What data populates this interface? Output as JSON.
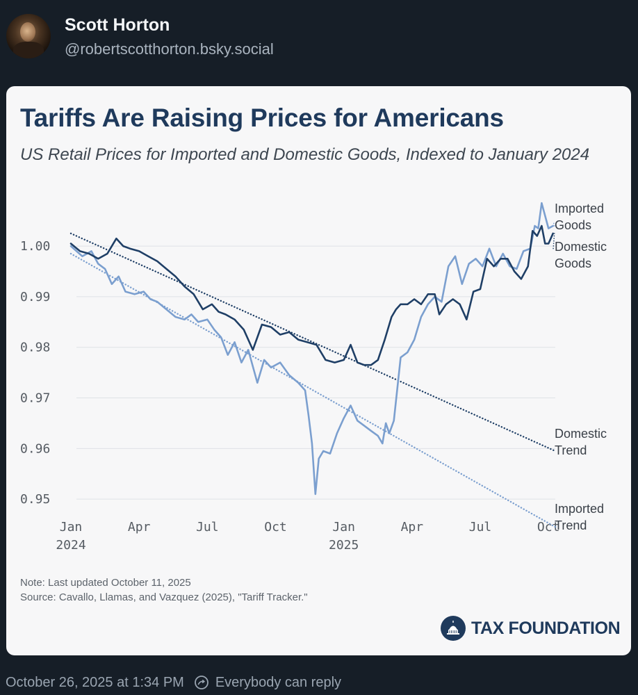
{
  "post": {
    "author_name": "Scott Horton",
    "author_handle": "@robertscotthorton.bsky.social",
    "timestamp": "October 26, 2025 at 1:34 PM",
    "reply_setting": "Everybody can reply"
  },
  "chart_card": {
    "brand": "TAX FOUNDATION",
    "note": "Note: Last updated October 11, 2025",
    "source": "Source: Cavallo, Llamas, and Vazquez (2025), \"Tariff Tracker.\""
  },
  "colors": {
    "imported": "#7b9fcf",
    "domestic": "#1f3f66",
    "title": "#1f3a5c",
    "background": "#161e27"
  },
  "chart_data": {
    "type": "line",
    "title": "Tariffs Are Raising Prices for Americans",
    "subtitle": "US Retail Prices for Imported and Domestic Goods, Indexed to January 2024",
    "xlabel": "",
    "ylabel": "",
    "ylim": [
      0.947,
      1.011
    ],
    "xlim": [
      0,
      21.3
    ],
    "grid": true,
    "y_ticks": [
      {
        "value": 1.0,
        "label": "1.00"
      },
      {
        "value": 0.99,
        "label": "0.99"
      },
      {
        "value": 0.98,
        "label": "0.98"
      },
      {
        "value": 0.97,
        "label": "0.97"
      },
      {
        "value": 0.96,
        "label": "0.96"
      },
      {
        "value": 0.95,
        "label": "0.95"
      }
    ],
    "x_ticks": [
      {
        "value": 0,
        "label": "Jan",
        "sublabel": "2024"
      },
      {
        "value": 3,
        "label": "Apr",
        "sublabel": ""
      },
      {
        "value": 6,
        "label": "Jul",
        "sublabel": ""
      },
      {
        "value": 9,
        "label": "Oct",
        "sublabel": ""
      },
      {
        "value": 12,
        "label": "Jan",
        "sublabel": "2025"
      },
      {
        "value": 15,
        "label": "Apr",
        "sublabel": ""
      },
      {
        "value": 18,
        "label": "Jul",
        "sublabel": ""
      },
      {
        "value": 21,
        "label": "Oct",
        "sublabel": ""
      }
    ],
    "series": [
      {
        "name": "Imported Goods",
        "label_lines": [
          "Imported",
          "Goods"
        ],
        "style": "solid",
        "color": "#7b9fcf",
        "x": [
          0,
          0.5,
          0.9,
          1.2,
          1.5,
          1.8,
          2.1,
          2.4,
          2.8,
          3.2,
          3.5,
          3.8,
          4.2,
          4.6,
          5.0,
          5.3,
          5.6,
          6.0,
          6.3,
          6.6,
          6.9,
          7.2,
          7.5,
          7.8,
          8.2,
          8.5,
          8.8,
          9.2,
          9.6,
          10.0,
          10.3,
          10.45,
          10.6,
          10.75,
          10.9,
          11.1,
          11.4,
          11.7,
          12.0,
          12.3,
          12.6,
          12.9,
          13.2,
          13.5,
          13.7,
          13.85,
          14.0,
          14.2,
          14.5,
          14.8,
          15.1,
          15.4,
          15.7,
          16.0,
          16.3,
          16.6,
          16.9,
          17.2,
          17.5,
          17.8,
          18.1,
          18.4,
          18.7,
          19.0,
          19.3,
          19.6,
          19.9,
          20.2,
          20.4,
          20.55,
          20.7,
          20.85,
          21.0,
          21.2
        ],
        "values": [
          1.0,
          0.998,
          0.999,
          0.9965,
          0.9955,
          0.9925,
          0.994,
          0.991,
          0.9905,
          0.991,
          0.9895,
          0.989,
          0.9875,
          0.986,
          0.9855,
          0.9865,
          0.985,
          0.9855,
          0.9835,
          0.982,
          0.9785,
          0.981,
          0.977,
          0.9795,
          0.973,
          0.9775,
          0.976,
          0.977,
          0.9745,
          0.973,
          0.9715,
          0.9665,
          0.961,
          0.951,
          0.958,
          0.9595,
          0.959,
          0.963,
          0.966,
          0.9685,
          0.9655,
          0.9645,
          0.9635,
          0.9625,
          0.961,
          0.965,
          0.963,
          0.9655,
          0.978,
          0.979,
          0.9815,
          0.986,
          0.9885,
          0.99,
          0.989,
          0.996,
          0.998,
          0.9925,
          0.9965,
          0.9975,
          0.996,
          0.9995,
          0.996,
          0.9985,
          0.996,
          0.9955,
          0.999,
          0.9995,
          1.004,
          1.0035,
          1.0085,
          1.006,
          1.0035,
          1.004
        ]
      },
      {
        "name": "Domestic Goods",
        "label_lines": [
          "Domestic",
          "Goods"
        ],
        "style": "solid",
        "color": "#1f3f66",
        "x": [
          0,
          0.4,
          0.8,
          1.2,
          1.6,
          2.0,
          2.3,
          2.6,
          3.0,
          3.4,
          3.8,
          4.2,
          4.6,
          5.0,
          5.4,
          5.8,
          6.2,
          6.5,
          6.8,
          7.2,
          7.6,
          8.0,
          8.4,
          8.8,
          9.2,
          9.6,
          10.0,
          10.4,
          10.8,
          11.2,
          11.6,
          12.0,
          12.3,
          12.6,
          12.9,
          13.2,
          13.5,
          13.8,
          14.1,
          14.3,
          14.5,
          14.8,
          15.1,
          15.4,
          15.7,
          16.0,
          16.2,
          16.5,
          16.8,
          17.1,
          17.4,
          17.7,
          18.0,
          18.3,
          18.6,
          18.9,
          19.2,
          19.5,
          19.8,
          20.1,
          20.3,
          20.5,
          20.7,
          20.85,
          21.0,
          21.2
        ],
        "values": [
          1.0005,
          0.999,
          0.9985,
          0.9975,
          0.9985,
          1.0015,
          1.0,
          0.9995,
          0.999,
          0.998,
          0.997,
          0.9955,
          0.994,
          0.992,
          0.9905,
          0.9875,
          0.9885,
          0.987,
          0.9865,
          0.9855,
          0.9835,
          0.9795,
          0.9845,
          0.984,
          0.9825,
          0.983,
          0.9815,
          0.981,
          0.9805,
          0.9775,
          0.977,
          0.9775,
          0.9805,
          0.977,
          0.9765,
          0.9765,
          0.9775,
          0.9815,
          0.986,
          0.9875,
          0.9885,
          0.9885,
          0.9895,
          0.9885,
          0.9905,
          0.9905,
          0.9865,
          0.9885,
          0.9895,
          0.9885,
          0.9855,
          0.991,
          0.9915,
          0.9975,
          0.996,
          0.9975,
          0.9975,
          0.995,
          0.9935,
          0.996,
          1.003,
          1.002,
          1.004,
          1.0005,
          1.0005,
          1.0025
        ]
      },
      {
        "name": "Domestic Trend",
        "label_lines": [
          "Domestic",
          "Trend"
        ],
        "style": "dotted",
        "color": "#1f3f66",
        "x": [
          0,
          21.3
        ],
        "values": [
          1.0025,
          0.9595
        ]
      },
      {
        "name": "Imported Trend",
        "label_lines": [
          "Imported",
          "Trend"
        ],
        "style": "dotted",
        "color": "#7b9fcf",
        "x": [
          0,
          21.3
        ],
        "values": [
          0.9985,
          0.9445
        ]
      }
    ]
  }
}
